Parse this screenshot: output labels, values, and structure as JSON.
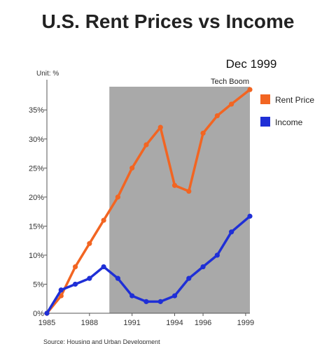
{
  "chart_data": {
    "type": "line",
    "title": "U.S. Rent Prices vs Income",
    "unit_label": "Unit: %",
    "date_label": "Dec 1999",
    "shaded_region": {
      "x_start": 1989.4,
      "x_end": 1999.3,
      "label": "Tech Boom"
    },
    "x": [
      1985,
      1986,
      1987,
      1988,
      1989,
      1990,
      1991,
      1992,
      1993,
      1994,
      1995,
      1996,
      1997,
      1998,
      1999.3
    ],
    "series": [
      {
        "name": "Rent Price",
        "color": "#f26522",
        "values": [
          0,
          3,
          8,
          12,
          16,
          20,
          25,
          29,
          32,
          22,
          21,
          31,
          34,
          36,
          38.5
        ]
      },
      {
        "name": "Income",
        "color": "#1f2fd6",
        "values": [
          0,
          4,
          5,
          6,
          8,
          6,
          3,
          2,
          2,
          3,
          6,
          8,
          10,
          14,
          16.7
        ]
      }
    ],
    "x_ticks": [
      "1985",
      "1988",
      "1991",
      "1994",
      "1996",
      "1999"
    ],
    "x_tick_values": [
      1985,
      1988,
      1991,
      1994,
      1996,
      1999
    ],
    "y_ticks": [
      "0%",
      "5%",
      "10%",
      "15%",
      "20%",
      "25%",
      "30%",
      "35%"
    ],
    "y_tick_values": [
      0,
      5,
      10,
      15,
      20,
      25,
      30,
      35
    ],
    "xlim": [
      1985,
      1999.3
    ],
    "ylim": [
      0,
      39
    ],
    "legend_position": "top-right",
    "source": "Source: Housing and Urban Development"
  },
  "colors": {
    "shade": "#a9a9a9",
    "axis": "#555555"
  }
}
